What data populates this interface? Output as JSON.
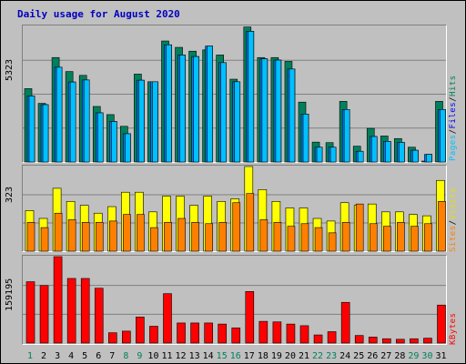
{
  "chart_data": {
    "type": "bar",
    "title": "Daily usage for August 2020",
    "categories": [
      "1",
      "2",
      "3",
      "4",
      "5",
      "6",
      "7",
      "8",
      "9",
      "10",
      "11",
      "12",
      "13",
      "14",
      "15",
      "16",
      "17",
      "18",
      "19",
      "20",
      "21",
      "22",
      "23",
      "24",
      "25",
      "26",
      "27",
      "28",
      "29",
      "30",
      "31"
    ],
    "weekend_days": [
      1,
      8,
      9,
      15,
      16,
      22,
      23,
      29,
      30
    ],
    "panels": [
      {
        "id": "hits-files-pages",
        "ymax_label": "5323",
        "ymax": 5323,
        "series": [
          {
            "name": "Hits",
            "color": "#00805c",
            "values": [
              2880,
              2300,
              4100,
              3550,
              3400,
              2180,
              1860,
              1400,
              3450,
              3150,
              4750,
              4500,
              4350,
              4400,
              4200,
              3250,
              5300,
              4100,
              4100,
              3950,
              2350,
              780,
              760,
              2380,
              620,
              1320,
              1020,
              920,
              580,
              5,
              2380
            ]
          },
          {
            "name": "Files",
            "color": "#0080ff",
            "values": [
              2590,
              2250,
              3720,
              3140,
              3220,
              1930,
              1590,
              1110,
              3210,
              3150,
              4600,
              4200,
              4140,
              4550,
              3900,
              3150,
              5130,
              4050,
              4000,
              3650,
              1880,
              580,
              580,
              2060,
              420,
              1000,
              810,
              770,
              460,
              300,
              2060
            ]
          },
          {
            "name": "Pages",
            "color": "#00c0ff",
            "values": [
              2590,
              2250,
              3720,
              3140,
              3220,
              1930,
              1590,
              1110,
              3210,
              3150,
              4600,
              4200,
              4140,
              4550,
              3900,
              3150,
              5130,
              4050,
              4000,
              3650,
              1880,
              580,
              580,
              2060,
              420,
              1000,
              810,
              770,
              460,
              300,
              2060
            ]
          }
        ]
      },
      {
        "id": "visits-sites",
        "ymax_label": "323",
        "ymax": 323,
        "series": [
          {
            "name": "Visits",
            "color": "#ffff00",
            "values": [
              155,
              125,
              240,
              190,
              175,
              145,
              170,
              225,
              225,
              150,
              210,
              210,
              175,
              210,
              190,
              200,
              323,
              235,
              190,
              165,
              165,
              125,
              115,
              185,
              175,
              180,
              150,
              150,
              140,
              135,
              270
            ]
          },
          {
            "name": "Sites",
            "color": "#ff8000",
            "values": [
              110,
              90,
              145,
              120,
              110,
              110,
              115,
              140,
              140,
              90,
              110,
              125,
              110,
              105,
              110,
              185,
              220,
              120,
              110,
              95,
              105,
              90,
              70,
              110,
              180,
              105,
              95,
              110,
              95,
              105,
              190
            ]
          }
        ]
      },
      {
        "id": "kbytes",
        "ymax_label": "159195",
        "ymax": 159195,
        "series": [
          {
            "name": "KBytes",
            "color": "#ff0000",
            "values": [
              113000,
              106000,
              159195,
              119000,
              119000,
              101000,
              19000,
              22000,
              48000,
              31000,
              91000,
              37000,
              37000,
              37000,
              35000,
              28000,
              95000,
              40000,
              39000,
              35000,
              32000,
              15000,
              21000,
              75000,
              14000,
              11000,
              8000,
              7000,
              8000,
              9000,
              70000
            ]
          }
        ]
      }
    ],
    "right_labels": {
      "panel1": [
        {
          "text": "Pages",
          "color": "#00c0ff"
        },
        {
          "text": "/",
          "color": "#000000"
        },
        {
          "text": "Files",
          "color": "#0000ff"
        },
        {
          "text": "/",
          "color": "#000000"
        },
        {
          "text": "Hits",
          "color": "#00805c"
        }
      ],
      "panel2": [
        {
          "text": "Sites",
          "color": "#ff8000"
        },
        {
          "text": "/",
          "color": "#000000"
        },
        {
          "text": "Visits",
          "color": "#e0e000"
        }
      ],
      "panel3": [
        {
          "text": "KBytes",
          "color": "#ff0000"
        }
      ]
    },
    "x_label_colors": {
      "weekday": "#000000",
      "weekend": "#00805c"
    }
  }
}
